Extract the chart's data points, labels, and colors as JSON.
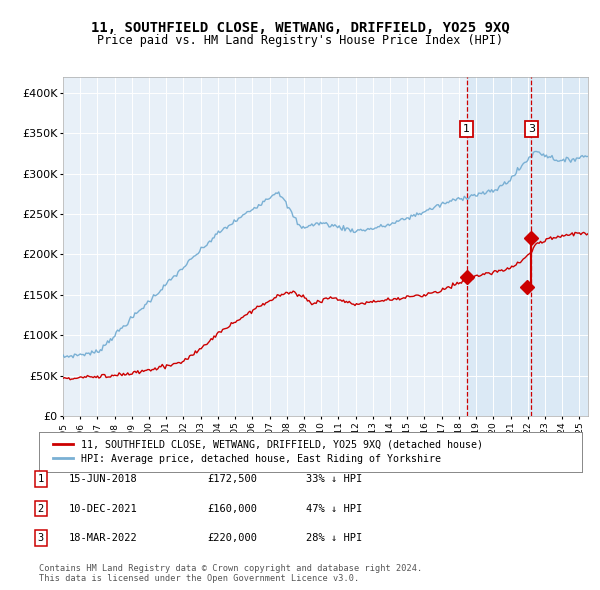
{
  "title": "11, SOUTHFIELD CLOSE, WETWANG, DRIFFIELD, YO25 9XQ",
  "subtitle": "Price paid vs. HM Land Registry's House Price Index (HPI)",
  "legend_label_red": "11, SOUTHFIELD CLOSE, WETWANG, DRIFFIELD, YO25 9XQ (detached house)",
  "legend_label_blue": "HPI: Average price, detached house, East Riding of Yorkshire",
  "footnote": "Contains HM Land Registry data © Crown copyright and database right 2024.\nThis data is licensed under the Open Government Licence v3.0.",
  "table_rows": [
    {
      "num": "1",
      "date": "15-JUN-2018",
      "price": "£172,500",
      "hpi": "33% ↓ HPI"
    },
    {
      "num": "2",
      "date": "10-DEC-2021",
      "price": "£160,000",
      "hpi": "47% ↓ HPI"
    },
    {
      "num": "3",
      "date": "18-MAR-2022",
      "price": "£220,000",
      "hpi": "28% ↓ HPI"
    }
  ],
  "sale1_year": 2018.45,
  "sale1_price": 172500,
  "sale2_year": 2021.94,
  "sale2_price": 160000,
  "sale3_year": 2022.21,
  "sale3_price": 220000,
  "ylim": [
    0,
    420000
  ],
  "xlim_start": 1995,
  "xlim_end": 2025.5,
  "plot_bg": "#e8f0f8",
  "plot_bg_shaded": "#d0e4f4",
  "red_color": "#cc0000",
  "blue_color": "#7ab0d4",
  "grid_color": "#ffffff",
  "dashed_color": "#cc0000",
  "title_fontsize": 10,
  "subtitle_fontsize": 9
}
